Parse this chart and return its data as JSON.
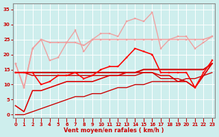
{
  "x": [
    0,
    1,
    2,
    3,
    4,
    5,
    6,
    7,
    8,
    9,
    10,
    11,
    12,
    13,
    14,
    15,
    16,
    17,
    18,
    19,
    20,
    21,
    22,
    23
  ],
  "lines": [
    {
      "y": [
        17,
        9,
        22,
        25,
        24,
        24,
        24,
        24,
        23,
        25,
        25,
        25,
        25,
        25,
        25,
        25,
        25,
        25,
        25,
        25,
        25,
        25,
        25,
        26
      ],
      "color": "#f0a0a0",
      "marker": "s",
      "markersize": 2.0,
      "linewidth": 1.2,
      "zorder": 2
    },
    {
      "y": [
        17,
        9,
        22,
        25,
        18,
        19,
        24,
        28,
        21,
        25,
        27,
        27,
        26,
        31,
        32,
        31,
        34,
        22,
        25,
        26,
        26,
        22,
        24,
        26
      ],
      "color": "#f0a0a0",
      "marker": "s",
      "markersize": 2.0,
      "linewidth": 1.0,
      "zorder": 2
    },
    {
      "y": [
        14,
        14,
        14,
        10,
        11,
        13,
        13,
        14,
        12,
        13,
        15,
        16,
        16,
        19,
        22,
        21,
        20,
        14,
        14,
        14,
        14,
        9,
        14,
        18
      ],
      "color": "#ff0000",
      "marker": "s",
      "markersize": 2.0,
      "linewidth": 1.2,
      "zorder": 3
    },
    {
      "y": [
        14,
        14,
        14,
        14,
        14,
        14,
        14,
        14,
        14,
        14,
        14,
        14,
        14,
        14,
        14,
        15,
        15,
        15,
        15,
        15,
        15,
        15,
        15,
        17
      ],
      "color": "#cc0000",
      "marker": null,
      "markersize": 0,
      "linewidth": 1.5,
      "zorder": 2
    },
    {
      "y": [
        14,
        14,
        13,
        13,
        13,
        13,
        13,
        13,
        13,
        13,
        13,
        13,
        13,
        13,
        13,
        14,
        14,
        12,
        12,
        12,
        11,
        9,
        13,
        17
      ],
      "color": "#cc0000",
      "marker": null,
      "markersize": 0,
      "linewidth": 1.0,
      "zorder": 2
    },
    {
      "y": [
        3,
        1,
        8,
        8,
        9,
        10,
        11,
        11,
        11,
        11,
        12,
        13,
        13,
        14,
        14,
        14,
        14,
        13,
        13,
        11,
        11,
        9,
        13,
        17
      ],
      "color": "#dd0000",
      "marker": null,
      "markersize": 0,
      "linewidth": 1.2,
      "zorder": 2
    },
    {
      "y": [
        0,
        0,
        1,
        2,
        3,
        4,
        5,
        6,
        6,
        7,
        7,
        8,
        9,
        9,
        10,
        10,
        11,
        11,
        11,
        11,
        12,
        12,
        13,
        14
      ],
      "color": "#cc0000",
      "marker": null,
      "markersize": 0,
      "linewidth": 1.0,
      "zorder": 2
    }
  ],
  "xlabel": "Vent moyen/en rafales ( km/h )",
  "xlim": [
    -0.3,
    23.3
  ],
  "ylim": [
    -1,
    37
  ],
  "yticks": [
    0,
    5,
    10,
    15,
    20,
    25,
    30,
    35
  ],
  "xticks": [
    0,
    1,
    2,
    3,
    4,
    5,
    6,
    7,
    8,
    9,
    10,
    11,
    12,
    13,
    14,
    15,
    16,
    17,
    18,
    19,
    20,
    21,
    22,
    23
  ],
  "bg_color": "#ceeeed",
  "grid_color": "#b0d8d8",
  "tick_color": "#cc0000",
  "label_color": "#cc0000",
  "axis_color": "#888888"
}
